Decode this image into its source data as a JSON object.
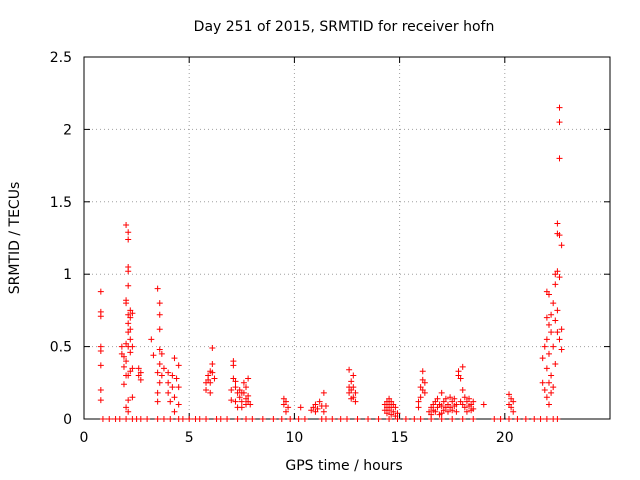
{
  "chart_data": {
    "type": "scatter",
    "title": "Day 251 of 2015, SRMTID for receiver hofn",
    "xlabel": "GPS time / hours",
    "ylabel": "SRMTID / TECUs",
    "xlim": [
      0,
      25
    ],
    "ylim": [
      0,
      2.5
    ],
    "xticks": [
      "0",
      "5",
      "10",
      "15",
      "20"
    ],
    "xtick_values": [
      0,
      5,
      10,
      15,
      20
    ],
    "yticks": [
      "0",
      "0.5",
      "1",
      "1.5",
      "2",
      "2.5"
    ],
    "ytick_values": [
      0,
      0.5,
      1,
      1.5,
      2,
      2.5
    ],
    "grid": true,
    "marker": "+",
    "series": [
      {
        "name": "hofn",
        "color": "#ff0000",
        "points": [
          [
            0.8,
            0.88
          ],
          [
            0.8,
            0.74
          ],
          [
            0.8,
            0.71
          ],
          [
            0.8,
            0.5
          ],
          [
            0.8,
            0.47
          ],
          [
            0.8,
            0.37
          ],
          [
            0.8,
            0.2
          ],
          [
            0.8,
            0.13
          ],
          [
            0.9,
            0.0
          ],
          [
            1.2,
            0.0
          ],
          [
            1.5,
            0.0
          ],
          [
            1.7,
            0.0
          ],
          [
            1.8,
            0.5
          ],
          [
            1.8,
            0.45
          ],
          [
            1.9,
            0.43
          ],
          [
            1.9,
            0.36
          ],
          [
            1.9,
            0.24
          ],
          [
            2.0,
            1.34
          ],
          [
            2.0,
            0.82
          ],
          [
            2.0,
            0.8
          ],
          [
            2.0,
            0.52
          ],
          [
            2.0,
            0.4
          ],
          [
            2.0,
            0.3
          ],
          [
            2.0,
            0.08
          ],
          [
            2.0,
            0.0
          ],
          [
            2.1,
            1.29
          ],
          [
            2.1,
            1.24
          ],
          [
            2.1,
            1.05
          ],
          [
            2.1,
            1.02
          ],
          [
            2.1,
            0.92
          ],
          [
            2.1,
            0.72
          ],
          [
            2.1,
            0.66
          ],
          [
            2.1,
            0.6
          ],
          [
            2.1,
            0.5
          ],
          [
            2.1,
            0.3
          ],
          [
            2.1,
            0.13
          ],
          [
            2.1,
            0.05
          ],
          [
            2.2,
            0.75
          ],
          [
            2.2,
            0.7
          ],
          [
            2.2,
            0.62
          ],
          [
            2.2,
            0.55
          ],
          [
            2.2,
            0.46
          ],
          [
            2.2,
            0.33
          ],
          [
            2.3,
            0.73
          ],
          [
            2.3,
            0.5
          ],
          [
            2.3,
            0.35
          ],
          [
            2.3,
            0.15
          ],
          [
            2.3,
            0.0
          ],
          [
            2.5,
            0.0
          ],
          [
            2.6,
            0.35
          ],
          [
            2.6,
            0.3
          ],
          [
            2.7,
            0.32
          ],
          [
            2.7,
            0.27
          ],
          [
            2.7,
            0.0
          ],
          [
            3.0,
            0.0
          ],
          [
            3.2,
            0.55
          ],
          [
            3.3,
            0.44
          ],
          [
            3.5,
            0.9
          ],
          [
            3.5,
            0.32
          ],
          [
            3.5,
            0.18
          ],
          [
            3.5,
            0.12
          ],
          [
            3.5,
            0.0
          ],
          [
            3.6,
            0.8
          ],
          [
            3.6,
            0.72
          ],
          [
            3.6,
            0.62
          ],
          [
            3.6,
            0.48
          ],
          [
            3.6,
            0.38
          ],
          [
            3.6,
            0.25
          ],
          [
            3.7,
            0.45
          ],
          [
            3.7,
            0.3
          ],
          [
            3.8,
            0.35
          ],
          [
            3.8,
            0.0
          ],
          [
            4.0,
            0.32
          ],
          [
            4.0,
            0.25
          ],
          [
            4.0,
            0.18
          ],
          [
            4.1,
            0.12
          ],
          [
            4.1,
            0.0
          ],
          [
            4.2,
            0.3
          ],
          [
            4.2,
            0.22
          ],
          [
            4.3,
            0.42
          ],
          [
            4.3,
            0.15
          ],
          [
            4.3,
            0.05
          ],
          [
            4.4,
            0.28
          ],
          [
            4.5,
            0.37
          ],
          [
            4.5,
            0.22
          ],
          [
            4.5,
            0.1
          ],
          [
            4.5,
            0.0
          ],
          [
            4.7,
            0.0
          ],
          [
            5.0,
            0.0
          ],
          [
            5.3,
            0.0
          ],
          [
            5.5,
            0.0
          ],
          [
            5.8,
            0.0
          ],
          [
            5.8,
            0.2
          ],
          [
            5.8,
            0.25
          ],
          [
            5.9,
            0.3
          ],
          [
            5.9,
            0.27
          ],
          [
            6.0,
            0.33
          ],
          [
            6.0,
            0.25
          ],
          [
            6.0,
            0.18
          ],
          [
            6.1,
            0.49
          ],
          [
            6.1,
            0.38
          ],
          [
            6.1,
            0.32
          ],
          [
            6.2,
            0.28
          ],
          [
            6.3,
            0.0
          ],
          [
            6.5,
            0.0
          ],
          [
            6.8,
            0.0
          ],
          [
            7.0,
            0.2
          ],
          [
            7.0,
            0.13
          ],
          [
            7.1,
            0.4
          ],
          [
            7.1,
            0.37
          ],
          [
            7.1,
            0.28
          ],
          [
            7.2,
            0.26
          ],
          [
            7.2,
            0.22
          ],
          [
            7.2,
            0.12
          ],
          [
            7.3,
            0.18
          ],
          [
            7.3,
            0.08
          ],
          [
            7.4,
            0.2
          ],
          [
            7.4,
            0.15
          ],
          [
            7.5,
            0.18
          ],
          [
            7.5,
            0.12
          ],
          [
            7.5,
            0.08
          ],
          [
            7.6,
            0.25
          ],
          [
            7.6,
            0.18
          ],
          [
            7.7,
            0.22
          ],
          [
            7.7,
            0.14
          ],
          [
            7.7,
            0.1
          ],
          [
            7.8,
            0.28
          ],
          [
            7.8,
            0.16
          ],
          [
            7.8,
            0.12
          ],
          [
            7.9,
            0.1
          ],
          [
            7.3,
            0.0
          ],
          [
            7.7,
            0.0
          ],
          [
            8.0,
            0.0
          ],
          [
            8.5,
            0.0
          ],
          [
            9.0,
            0.0
          ],
          [
            9.4,
            0.0
          ],
          [
            9.5,
            0.14
          ],
          [
            9.5,
            0.1
          ],
          [
            9.6,
            0.12
          ],
          [
            9.6,
            0.05
          ],
          [
            9.7,
            0.08
          ],
          [
            9.8,
            0.0
          ],
          [
            10.2,
            0.0
          ],
          [
            10.3,
            0.08
          ],
          [
            10.5,
            0.0
          ],
          [
            10.8,
            0.06
          ],
          [
            10.9,
            0.08
          ],
          [
            11.0,
            0.1
          ],
          [
            11.0,
            0.05
          ],
          [
            11.1,
            0.07
          ],
          [
            11.2,
            0.12
          ],
          [
            11.3,
            0.09
          ],
          [
            11.3,
            0.0
          ],
          [
            11.4,
            0.18
          ],
          [
            11.4,
            0.05
          ],
          [
            11.5,
            0.09
          ],
          [
            11.5,
            0.0
          ],
          [
            11.8,
            0.0
          ],
          [
            12.2,
            0.0
          ],
          [
            12.6,
            0.34
          ],
          [
            12.6,
            0.22
          ],
          [
            12.6,
            0.18
          ],
          [
            12.7,
            0.26
          ],
          [
            12.7,
            0.2
          ],
          [
            12.7,
            0.14
          ],
          [
            12.8,
            0.3
          ],
          [
            12.8,
            0.22
          ],
          [
            12.8,
            0.15
          ],
          [
            12.9,
            0.18
          ],
          [
            12.9,
            0.12
          ],
          [
            12.5,
            0.0
          ],
          [
            13.0,
            0.0
          ],
          [
            13.5,
            0.0
          ],
          [
            14.0,
            0.0
          ],
          [
            14.3,
            0.1
          ],
          [
            14.3,
            0.06
          ],
          [
            14.4,
            0.12
          ],
          [
            14.4,
            0.08
          ],
          [
            14.4,
            0.04
          ],
          [
            14.5,
            0.14
          ],
          [
            14.5,
            0.1
          ],
          [
            14.5,
            0.06
          ],
          [
            14.6,
            0.12
          ],
          [
            14.6,
            0.08
          ],
          [
            14.6,
            0.03
          ],
          [
            14.7,
            0.1
          ],
          [
            14.7,
            0.05
          ],
          [
            14.8,
            0.08
          ],
          [
            14.8,
            0.02
          ],
          [
            14.9,
            0.04
          ],
          [
            14.5,
            0.0
          ],
          [
            14.9,
            0.0
          ],
          [
            15.3,
            0.0
          ],
          [
            15.7,
            0.0
          ],
          [
            15.9,
            0.08
          ],
          [
            15.9,
            0.12
          ],
          [
            16.0,
            0.15
          ],
          [
            16.0,
            0.22
          ],
          [
            16.1,
            0.33
          ],
          [
            16.1,
            0.27
          ],
          [
            16.1,
            0.2
          ],
          [
            16.2,
            0.25
          ],
          [
            16.2,
            0.18
          ],
          [
            16.0,
            0.0
          ],
          [
            16.4,
            0.05
          ],
          [
            16.5,
            0.08
          ],
          [
            16.5,
            0.03
          ],
          [
            16.6,
            0.1
          ],
          [
            16.6,
            0.06
          ],
          [
            16.7,
            0.12
          ],
          [
            16.7,
            0.05
          ],
          [
            16.8,
            0.14
          ],
          [
            16.8,
            0.08
          ],
          [
            16.9,
            0.1
          ],
          [
            16.9,
            0.03
          ],
          [
            17.0,
            0.18
          ],
          [
            17.0,
            0.09
          ],
          [
            17.0,
            0.04
          ],
          [
            17.1,
            0.12
          ],
          [
            17.1,
            0.06
          ],
          [
            17.2,
            0.14
          ],
          [
            17.2,
            0.08
          ],
          [
            17.3,
            0.1
          ],
          [
            17.3,
            0.05
          ],
          [
            17.4,
            0.15
          ],
          [
            17.4,
            0.08
          ],
          [
            17.5,
            0.12
          ],
          [
            17.5,
            0.06
          ],
          [
            17.6,
            0.14
          ],
          [
            17.6,
            0.09
          ],
          [
            17.7,
            0.1
          ],
          [
            17.7,
            0.05
          ],
          [
            17.8,
            0.33
          ],
          [
            17.8,
            0.3
          ],
          [
            17.9,
            0.28
          ],
          [
            17.9,
            0.12
          ],
          [
            18.0,
            0.36
          ],
          [
            18.0,
            0.2
          ],
          [
            18.0,
            0.1
          ],
          [
            18.1,
            0.15
          ],
          [
            18.1,
            0.08
          ],
          [
            18.2,
            0.12
          ],
          [
            18.2,
            0.05
          ],
          [
            18.3,
            0.14
          ],
          [
            18.3,
            0.09
          ],
          [
            18.4,
            0.1
          ],
          [
            18.4,
            0.06
          ],
          [
            18.5,
            0.12
          ],
          [
            18.5,
            0.07
          ],
          [
            16.5,
            0.0
          ],
          [
            17.0,
            0.0
          ],
          [
            17.5,
            0.0
          ],
          [
            18.0,
            0.0
          ],
          [
            18.5,
            0.0
          ],
          [
            19.0,
            0.1
          ],
          [
            19.5,
            0.0
          ],
          [
            19.8,
            0.0
          ],
          [
            20.2,
            0.17
          ],
          [
            20.2,
            0.1
          ],
          [
            20.3,
            0.14
          ],
          [
            20.3,
            0.08
          ],
          [
            20.4,
            0.12
          ],
          [
            20.4,
            0.05
          ],
          [
            20.2,
            0.0
          ],
          [
            20.6,
            0.0
          ],
          [
            21.0,
            0.0
          ],
          [
            21.4,
            0.0
          ],
          [
            21.8,
            0.42
          ],
          [
            21.8,
            0.25
          ],
          [
            21.9,
            0.5
          ],
          [
            21.9,
            0.2
          ],
          [
            22.0,
            0.88
          ],
          [
            22.0,
            0.7
          ],
          [
            22.0,
            0.55
          ],
          [
            22.0,
            0.35
          ],
          [
            22.0,
            0.15
          ],
          [
            22.1,
            0.86
          ],
          [
            22.1,
            0.65
          ],
          [
            22.1,
            0.45
          ],
          [
            22.1,
            0.25
          ],
          [
            22.1,
            0.1
          ],
          [
            22.2,
            0.72
          ],
          [
            22.2,
            0.6
          ],
          [
            22.2,
            0.3
          ],
          [
            22.2,
            0.18
          ],
          [
            22.3,
            0.8
          ],
          [
            22.3,
            0.5
          ],
          [
            22.3,
            0.22
          ],
          [
            22.4,
            1.0
          ],
          [
            22.4,
            0.93
          ],
          [
            22.4,
            0.68
          ],
          [
            22.4,
            0.38
          ],
          [
            22.5,
            1.35
          ],
          [
            22.5,
            1.28
          ],
          [
            22.5,
            1.02
          ],
          [
            22.5,
            0.75
          ],
          [
            22.5,
            0.6
          ],
          [
            22.6,
            2.15
          ],
          [
            22.6,
            2.05
          ],
          [
            22.6,
            1.8
          ],
          [
            22.6,
            1.27
          ],
          [
            22.6,
            0.98
          ],
          [
            22.6,
            0.55
          ],
          [
            22.7,
            1.2
          ],
          [
            22.7,
            0.62
          ],
          [
            22.7,
            0.48
          ],
          [
            21.7,
            0.0
          ],
          [
            22.0,
            0.0
          ],
          [
            22.3,
            0.0
          ],
          [
            22.5,
            0.0
          ]
        ]
      }
    ]
  }
}
